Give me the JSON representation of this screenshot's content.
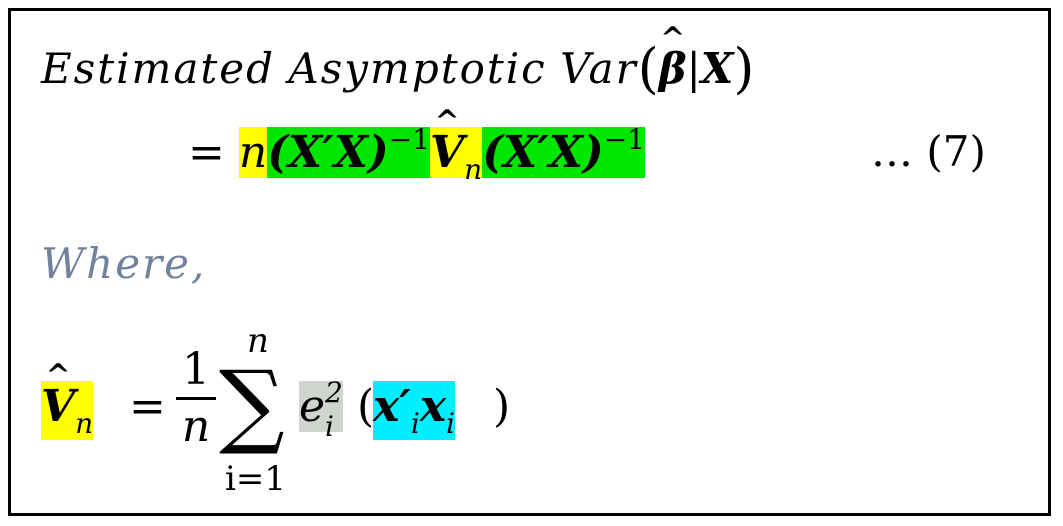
{
  "equation": {
    "line1": {
      "words": [
        "Estimated",
        "Asymptotic",
        "Var"
      ],
      "open_paren": "(",
      "beta": "β",
      "hat": "^",
      "bar": "|",
      "X": "X",
      "close_paren": ")"
    },
    "line2": {
      "equals": "=",
      "n": "n",
      "xtx_inv_1": "(X′X)",
      "inv_exp_1": "−1",
      "V": "V",
      "V_sub": "n",
      "xtx_inv_2": "(X′X)",
      "inv_exp_2": "−1"
    },
    "number": "… (7)"
  },
  "where_label": "Where,",
  "definition": {
    "V": "V",
    "V_sub": "n",
    "equals": "=",
    "frac_num": "1",
    "frac_den": "n",
    "sigma": "∑",
    "sum_upper": "n",
    "sum_lower": "i=1",
    "e": "e",
    "e_sup": "2",
    "e_sub": "i",
    "open_paren": "(",
    "x_prime": "x′",
    "x_prime_sub": "i",
    "x": "x",
    "x_sub": "i",
    "close_paren": ")"
  },
  "highlight_colors": {
    "yellow": "#ffff00",
    "green": "#00e600",
    "gray": "#d0d4cf",
    "cyan": "#00eeff",
    "where_text": "#71839c"
  }
}
